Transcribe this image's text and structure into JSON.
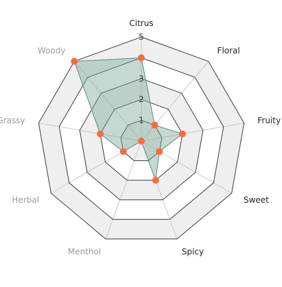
{
  "chart_data": {
    "type": "radar",
    "axes": [
      "Citrus",
      "Floral",
      "Fruity",
      "Sweet",
      "Spicy",
      "Menthol",
      "Herbal",
      "Grassy",
      "Woody"
    ],
    "axis_label_colors": [
      "#222222",
      "#222222",
      "#222222",
      "#222222",
      "#222222",
      "#9a9a9a",
      "#9a9a9a",
      "#9a9a9a",
      "#9a9a9a"
    ],
    "ticks": [
      "0",
      "1",
      "2",
      "3",
      "4",
      "5"
    ],
    "range": [
      0,
      5
    ],
    "series": [
      {
        "values": [
          4,
          1,
          2,
          1,
          2,
          0,
          1,
          2,
          5
        ]
      }
    ],
    "colors": {
      "fill": "#7fa89a",
      "fill_opacity": 0.45,
      "stroke": "#5c8c7c",
      "marker": "#ff6b35",
      "grid": "#3a3a3a",
      "band": "#efefef",
      "band_alt": "#ffffff",
      "spoke": "#c8c8c8"
    },
    "grid": true,
    "legend": "none"
  }
}
